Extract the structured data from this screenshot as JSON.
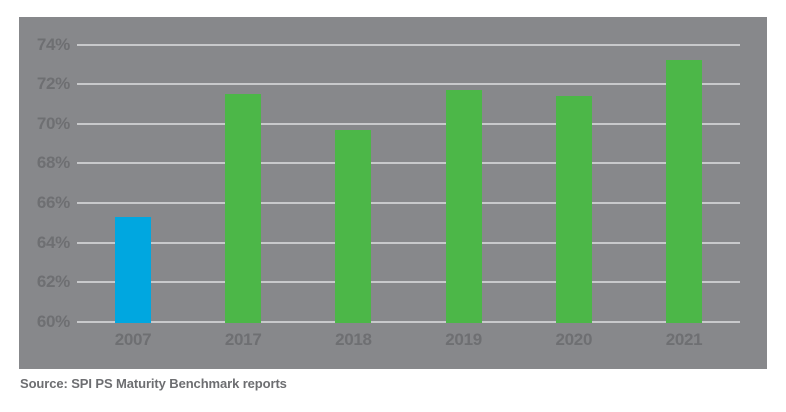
{
  "chart_data": {
    "type": "bar",
    "title": "",
    "xlabel": "",
    "ylabel": "",
    "categories": [
      "2007",
      "2017",
      "2018",
      "2019",
      "2020",
      "2021"
    ],
    "values": [
      65.3,
      71.5,
      69.7,
      71.7,
      71.4,
      73.2
    ],
    "bar_colors": [
      "#00A7E0",
      "#4CB748",
      "#4CB748",
      "#4CB748",
      "#4CB748",
      "#4CB748"
    ],
    "ylim": [
      60,
      74
    ],
    "yticks": [
      {
        "value": 74,
        "label": "74%"
      },
      {
        "value": 72,
        "label": "72%"
      },
      {
        "value": 70,
        "label": "70%"
      },
      {
        "value": 68,
        "label": "68%"
      },
      {
        "value": 66,
        "label": "66%"
      },
      {
        "value": 64,
        "label": "64%"
      },
      {
        "value": 62,
        "label": "62%"
      },
      {
        "value": 60,
        "label": "60%"
      }
    ],
    "grid": true,
    "legend": false,
    "plot_background": "#87888B",
    "gridline_color": "#C8C9CB",
    "tick_text_color": "#6E6F72",
    "source": "Source: SPI PS Maturity Benchmark reports"
  }
}
